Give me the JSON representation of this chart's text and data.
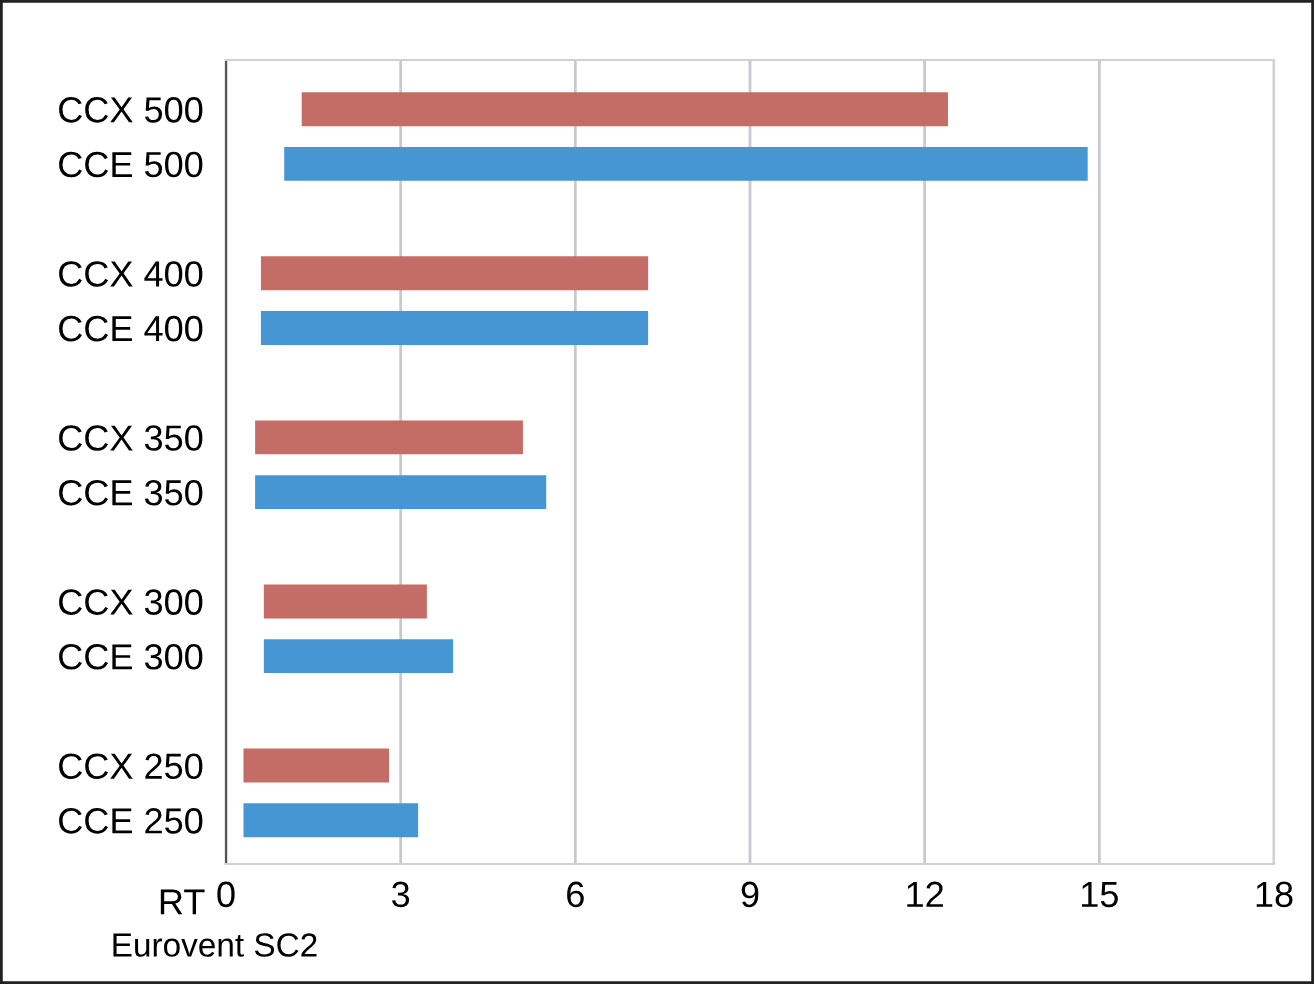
{
  "chart_data": {
    "type": "bar",
    "orientation": "horizontal",
    "xlabel": "RT",
    "categories": [
      "CCX 500",
      "CCE 500",
      null,
      "CCX 400",
      "CCE 400",
      null,
      "CCX 350",
      "CCE 350",
      null,
      "CCX 300",
      "CCE 300",
      null,
      "CCX 250",
      "CCE 250"
    ],
    "base": [
      1.3,
      1.0,
      null,
      0.6,
      0.6,
      null,
      0.5,
      0.5,
      null,
      0.65,
      0.65,
      null,
      0.3,
      0.3
    ],
    "values": [
      11.1,
      13.8,
      null,
      6.65,
      6.65,
      null,
      4.6,
      5.0,
      null,
      2.8,
      3.25,
      null,
      2.5,
      3.0
    ],
    "colors": [
      "#c46d66",
      "#4596d2",
      null,
      "#c46d66",
      "#4596d2",
      null,
      "#c46d66",
      "#4596d2",
      null,
      "#c46d66",
      "#4596d2",
      null,
      "#c46d66",
      "#4596d2"
    ],
    "xlim": [
      0,
      18
    ],
    "xticks": [
      0,
      3,
      6,
      9,
      12,
      15,
      18
    ],
    "grid": "x",
    "annotations": [
      "Eurovent SC2"
    ]
  }
}
